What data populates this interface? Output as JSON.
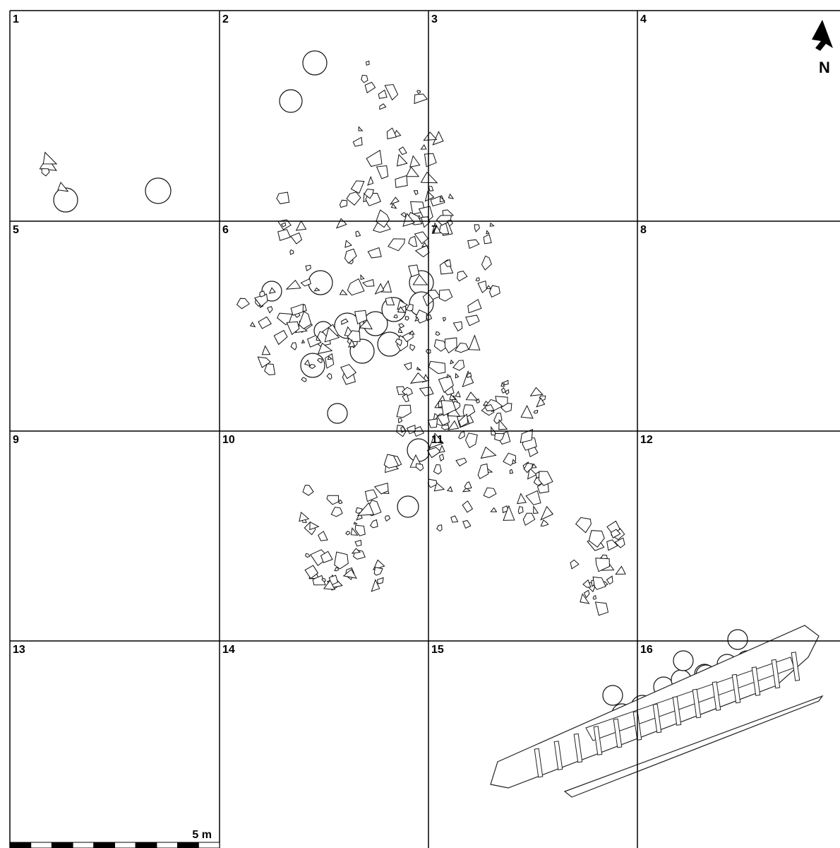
{
  "grid": {
    "cells": [
      "1",
      "2",
      "3",
      "4",
      "5",
      "6",
      "7",
      "8",
      "9",
      "10",
      "11",
      "12",
      "13",
      "14",
      "15",
      "16"
    ]
  },
  "north_label": "N",
  "scale": {
    "label": "5 m"
  }
}
